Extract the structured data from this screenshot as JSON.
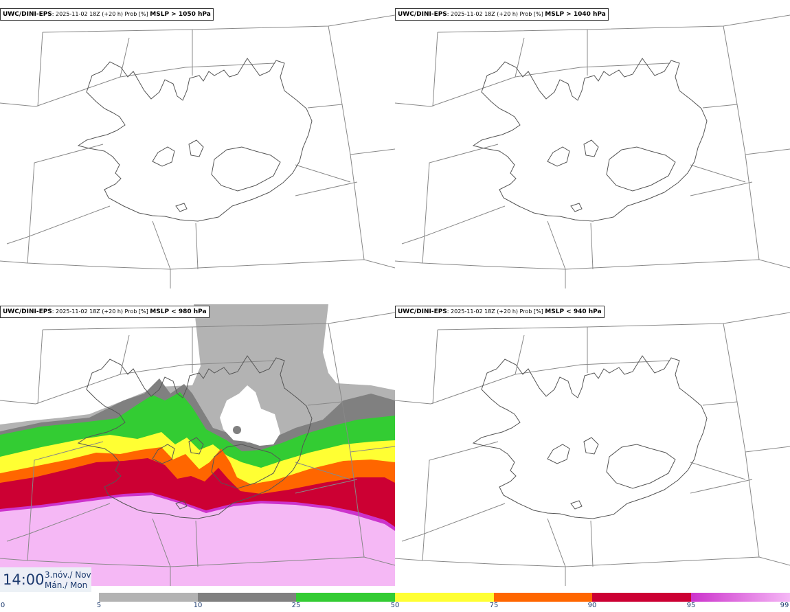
{
  "panels": [
    {
      "model": "UWC/DINI-EPS",
      "meta": ": 2025-11-02 18Z (+20 h) Prob [%] ",
      "threshold": "MSLP > 1050 hPa"
    },
    {
      "model": "UWC/DINI-EPS",
      "meta": ": 2025-11-02 18Z (+20 h) Prob [%] ",
      "threshold": "MSLP > 1040 hPa"
    },
    {
      "model": "UWC/DINI-EPS",
      "meta": ": 2025-11-02 18Z (+20 h) Prob [%] ",
      "threshold": "MSLP < 980 hPa"
    },
    {
      "model": "UWC/DINI-EPS",
      "meta": ": 2025-11-02 18Z (+20 h) Prob [%] ",
      "threshold": "MSLP < 940 hPa"
    }
  ],
  "valid_time": {
    "time": "14:00",
    "date": "3.nóv./ Nov",
    "weekday": "Mán./ Mon"
  },
  "legend": {
    "ticks": [
      "0",
      "5",
      "10",
      "25",
      "50",
      "75",
      "90",
      "95",
      "99"
    ],
    "colors": {
      "5-10": "#b3b3b3",
      "10-25": "#808080",
      "25-50": "#33cc33",
      "50-75": "#ffff33",
      "75-90": "#ff6600",
      "90-95": "#cc0033",
      "95-99": "#cc33cc",
      "99": "#f5b8f5"
    }
  }
}
